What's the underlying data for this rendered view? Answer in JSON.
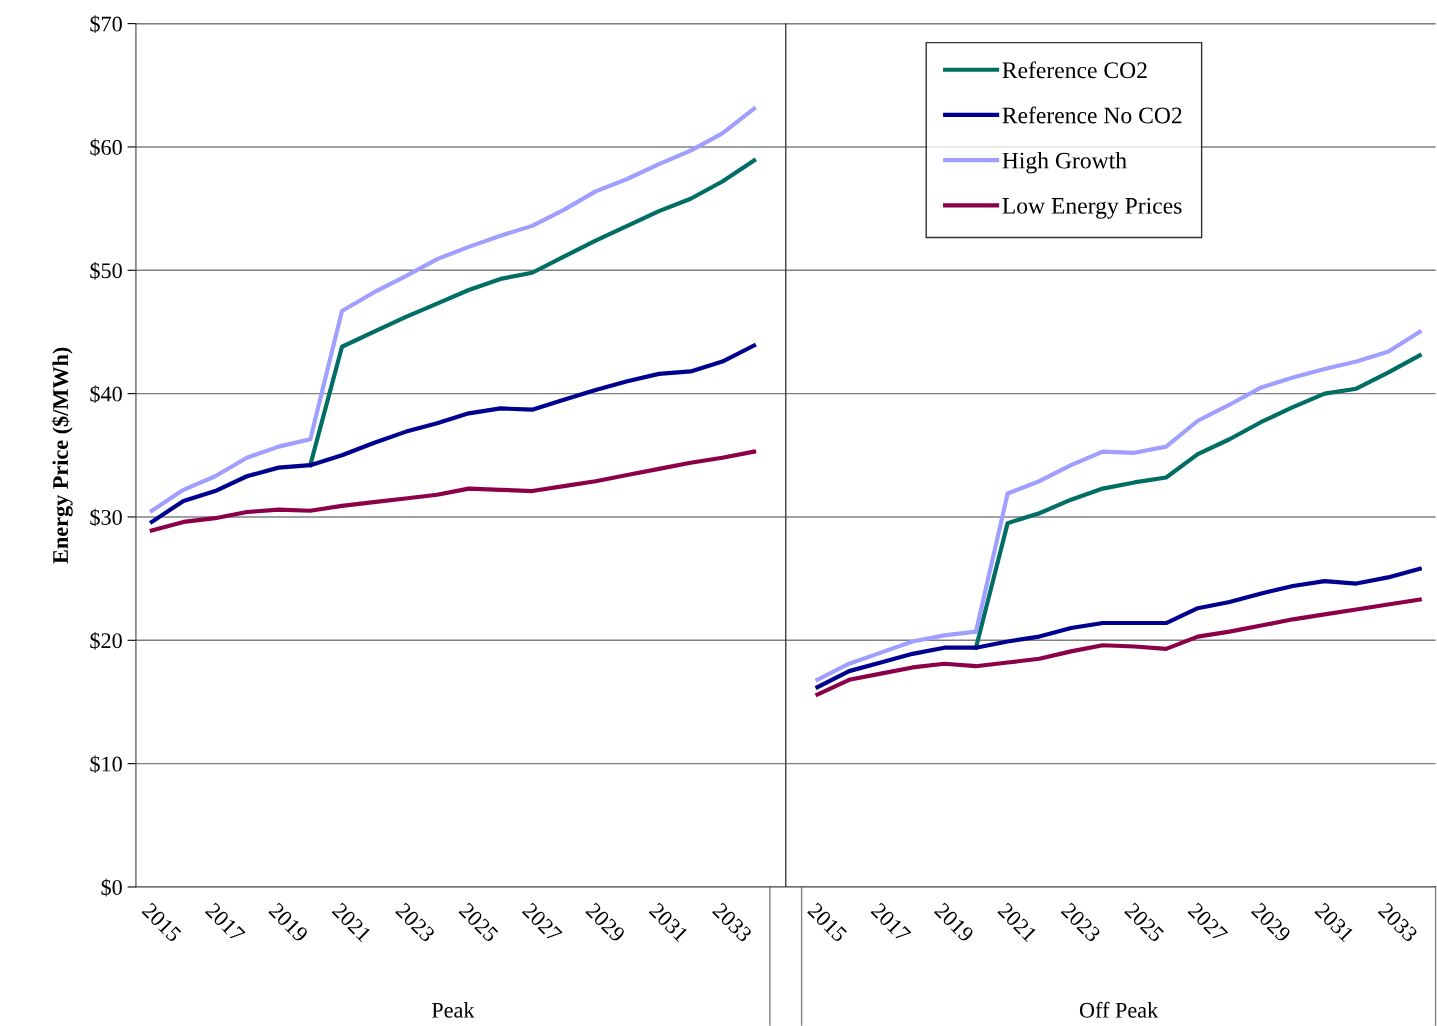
{
  "chart_data": {
    "type": "line",
    "ylabel": "Energy Price ($/MWh)",
    "categories": [
      "2015",
      null,
      "2017",
      null,
      "2019",
      null,
      "2021",
      null,
      "2023",
      null,
      "2025",
      null,
      "2027",
      null,
      "2029",
      null,
      "2031",
      null,
      "2033",
      null,
      null,
      "2015",
      null,
      "2017",
      null,
      "2019",
      null,
      "2021",
      null,
      "2023",
      null,
      "2025",
      null,
      "2027",
      null,
      "2029",
      null,
      "2031",
      null,
      "2033",
      null
    ],
    "series": [
      {
        "name": "Reference CO2",
        "color": "#006e64",
        "values": [
          null,
          null,
          null,
          null,
          null,
          34.2,
          43.8,
          45.0,
          46.2,
          47.3,
          48.4,
          49.3,
          49.8,
          51.1,
          52.4,
          53.6,
          54.8,
          55.8,
          57.2,
          58.9,
          null,
          null,
          null,
          null,
          null,
          null,
          19.4,
          29.5,
          30.3,
          31.4,
          32.3,
          32.8,
          33.2,
          35.1,
          36.3,
          37.7,
          38.9,
          40.0,
          40.4,
          41.7,
          43.1
        ]
      },
      {
        "name": "Reference No CO2",
        "color": "#000090",
        "values": [
          29.6,
          31.3,
          32.1,
          33.3,
          34.0,
          34.2,
          35.0,
          36.0,
          36.9,
          37.6,
          38.4,
          38.8,
          38.7,
          39.5,
          40.3,
          41.0,
          41.6,
          41.8,
          42.6,
          43.9,
          null,
          16.2,
          17.5,
          18.2,
          18.9,
          19.4,
          19.4,
          19.9,
          20.3,
          21.0,
          21.4,
          21.4,
          21.4,
          22.6,
          23.1,
          23.8,
          24.4,
          24.8,
          24.6,
          25.1,
          25.8
        ]
      },
      {
        "name": "High Growth",
        "color": "#9f9fff",
        "values": [
          30.5,
          32.2,
          33.3,
          34.8,
          35.7,
          36.3,
          46.7,
          48.2,
          49.5,
          50.9,
          51.9,
          52.8,
          53.6,
          54.9,
          56.4,
          57.4,
          58.6,
          59.7,
          61.1,
          63.1,
          null,
          16.8,
          18.1,
          19.0,
          19.9,
          20.4,
          20.7,
          31.9,
          32.9,
          34.2,
          35.3,
          35.2,
          35.7,
          37.8,
          39.1,
          40.5,
          41.3,
          42.0,
          42.6,
          43.4,
          45.0
        ]
      },
      {
        "name": "Low Energy Prices",
        "color": "#8b0048",
        "values": [
          28.9,
          29.6,
          29.9,
          30.4,
          30.6,
          30.5,
          30.9,
          31.2,
          31.5,
          31.8,
          32.3,
          32.2,
          32.1,
          32.5,
          32.9,
          33.4,
          33.9,
          34.4,
          34.8,
          35.3,
          null,
          15.6,
          16.8,
          17.3,
          17.8,
          18.1,
          17.9,
          18.2,
          18.5,
          19.1,
          19.6,
          19.5,
          19.3,
          20.3,
          20.7,
          21.2,
          21.7,
          22.1,
          22.5,
          22.9,
          23.3
        ]
      }
    ],
    "ylim": [
      0,
      70
    ],
    "yticks": [
      {
        "value": 0,
        "label": "$0"
      },
      {
        "value": 10,
        "label": "$10"
      },
      {
        "value": 20,
        "label": "$20"
      },
      {
        "value": 30,
        "label": "$30"
      },
      {
        "value": 40,
        "label": "$40"
      },
      {
        "value": 50,
        "label": "$50"
      },
      {
        "value": 60,
        "label": "$60"
      },
      {
        "value": 70,
        "label": "$70"
      }
    ],
    "grid": "y",
    "legend": "top right",
    "marker": "none",
    "line_style": "solid",
    "annotations": [
      "Peak",
      "Off Peak"
    ]
  }
}
